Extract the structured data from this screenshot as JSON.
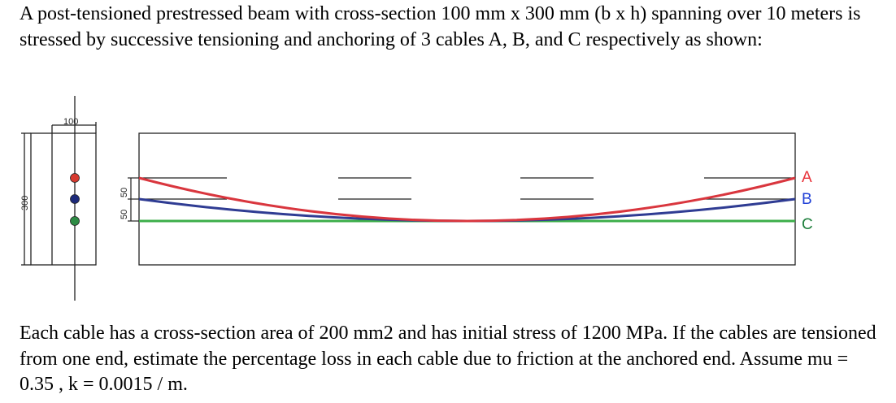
{
  "problem": {
    "intro": "A post-tensioned prestressed beam with cross-section 100 mm x 300 mm (b x h) spanning over 10 meters is stressed by successive tensioning and anchoring of 3 cables A, B, and C respectively as shown:",
    "question": "Each cable has a cross-section area of 200 mm2 and has initial stress of 1200 MPa. If the cables are tensioned from one end, estimate the percentage loss in each cable due to friction at the anchored end. Assume mu = 0.35 , k = 0.0015 / m."
  },
  "figure": {
    "section_width_label": "100",
    "section_height_label": "300",
    "spacing_label_1": "50",
    "spacing_label_2": "50",
    "cables": [
      {
        "label": "A",
        "color": "#e8333a",
        "line_color": "#d9363e"
      },
      {
        "label": "B",
        "color": "#1f3fd6",
        "line_color": "#2f3c93"
      },
      {
        "label": "C",
        "color": "#1b7d3a",
        "line_color": "#3cae4a"
      }
    ]
  }
}
